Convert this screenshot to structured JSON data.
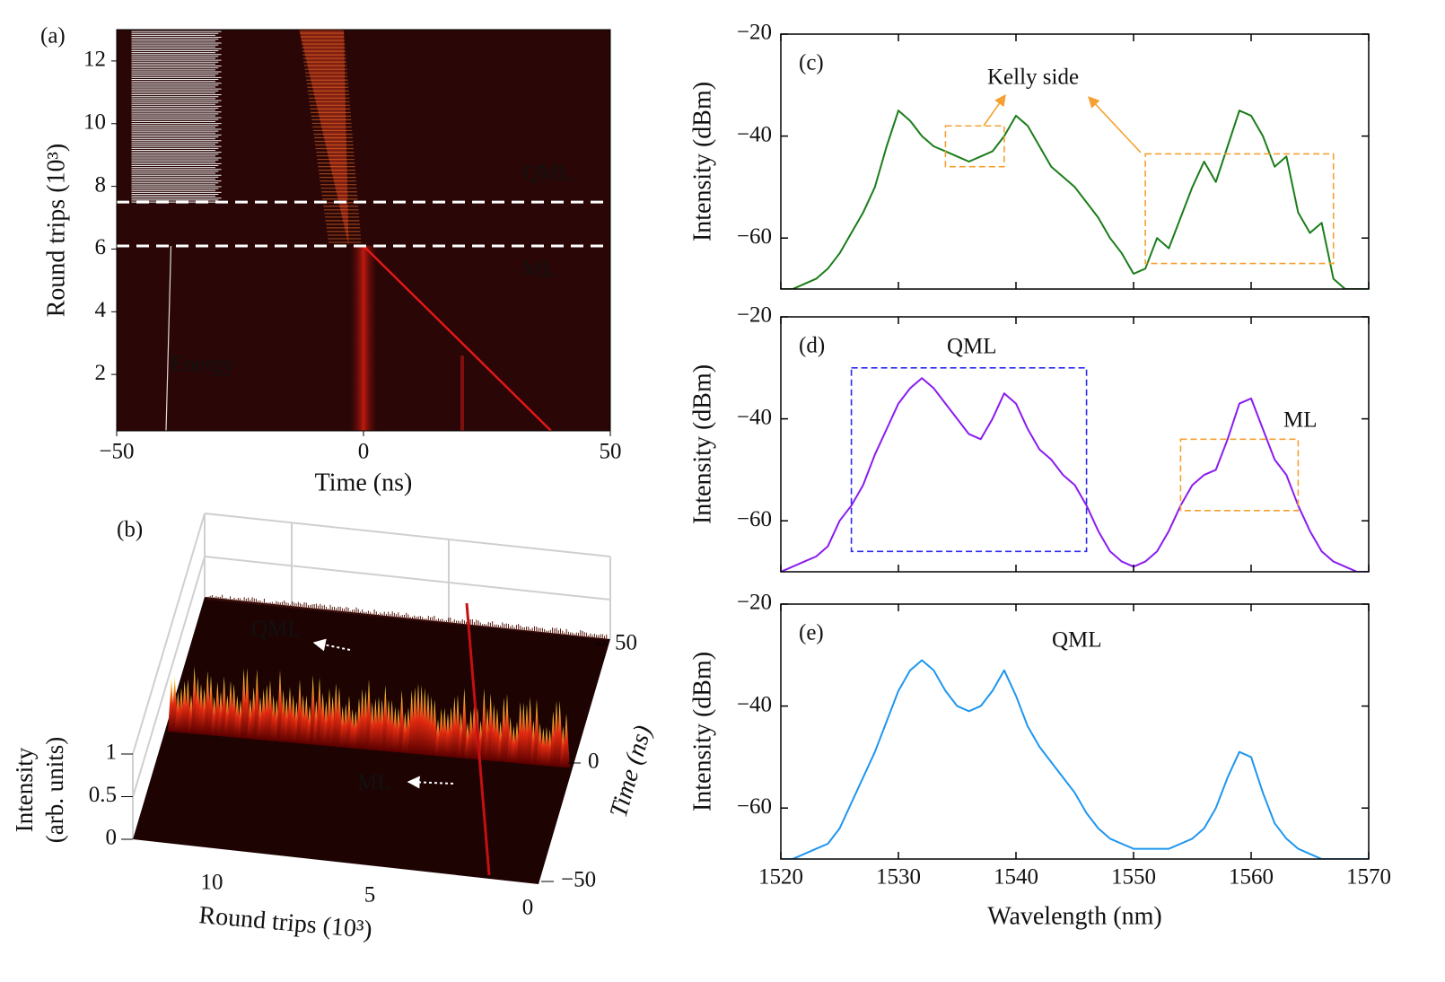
{
  "chart_data": [
    {
      "type": "heatmap",
      "panel": "(a)",
      "xlabel": "Time (ns)",
      "ylabel": "Round trips (10³)",
      "xlim": [
        -50,
        50
      ],
      "xticks": [
        {
          "value": -50,
          "label": "−50"
        },
        0,
        50
      ],
      "ylim": [
        0.2,
        13
      ],
      "yticks": [
        2,
        4,
        6,
        8,
        10,
        12
      ],
      "hlines": [
        7.5,
        6.1
      ],
      "annotations": [
        {
          "text": "QML",
          "color": "#ffffff"
        },
        {
          "text": "ML",
          "color": "#ffffff"
        },
        {
          "text": "Energy",
          "color": "#2f5fd0"
        }
      ]
    },
    {
      "type": "surface3d",
      "panel": "(b)",
      "xlabel": "Round trips (10³)",
      "ylabel": "Time (ns)",
      "zlabel": [
        "Intensity",
        "(arb. units)"
      ],
      "xlim": [
        0,
        13
      ],
      "xticks": [
        10,
        5,
        0
      ],
      "ylim": [
        -50,
        50
      ],
      "yticks": [
        {
          "value": -50,
          "label": "−50"
        },
        0,
        50
      ],
      "zlim": [
        0,
        1
      ],
      "zticks": [
        0,
        0.5,
        1
      ],
      "annotations": [
        {
          "text": "QML",
          "color": "#ffffff"
        },
        {
          "text": "ML",
          "color": "#ffffff"
        }
      ]
    },
    {
      "type": "line",
      "panel": "(c)",
      "ylabel": "Intensity (dBm)",
      "x": [
        1520,
        1521,
        1522,
        1523,
        1524,
        1525,
        1526,
        1527,
        1528,
        1529,
        1530,
        1531,
        1532,
        1533,
        1534,
        1535,
        1536,
        1537,
        1538,
        1539,
        1540,
        1541,
        1542,
        1543,
        1544,
        1545,
        1546,
        1547,
        1548,
        1549,
        1550,
        1551,
        1552,
        1553,
        1554,
        1555,
        1556,
        1557,
        1558,
        1559,
        1560,
        1561,
        1562,
        1563,
        1564,
        1565,
        1566,
        1567,
        1568,
        1569,
        1570
      ],
      "series": [
        {
          "color": "#1a7d1a",
          "values": [
            -70,
            -70,
            -69,
            -68,
            -66,
            -63,
            -59,
            -55,
            -50,
            -42,
            -35,
            -37,
            -40,
            -42,
            -43,
            -44,
            -45,
            -44,
            -43,
            -40,
            -36,
            -38,
            -42,
            -46,
            -48,
            -50,
            -53,
            -56,
            -60,
            -63,
            -67,
            -66,
            -60,
            -62,
            -56,
            -50,
            -45,
            -49,
            -42,
            -35,
            -36,
            -40,
            -46,
            -44,
            -55,
            -59,
            -57,
            -68,
            -70,
            -70,
            -70
          ]
        }
      ],
      "xlim": [
        1520,
        1570
      ],
      "xticks": [
        1520,
        1530,
        1540,
        1550,
        1560,
        1570
      ],
      "ylim": [
        -70,
        -20
      ],
      "yticks": [
        {
          "value": -60,
          "label": "−60"
        },
        {
          "value": -40,
          "label": "−40"
        },
        {
          "value": -20,
          "label": "−20"
        }
      ],
      "boxes": [
        {
          "x": [
            1534,
            1539
          ],
          "y": [
            -46,
            -38
          ],
          "color": "#f5a030"
        },
        {
          "x": [
            1551,
            1567
          ],
          "y": [
            -65,
            -43.5
          ],
          "color": "#f5a030"
        }
      ],
      "annotations": [
        {
          "text": "Kelly side",
          "color": "#f5a030"
        }
      ]
    },
    {
      "type": "line",
      "panel": "(d)",
      "ylabel": "Intensity (dBm)",
      "x": [
        1520,
        1521,
        1522,
        1523,
        1524,
        1525,
        1526,
        1527,
        1528,
        1529,
        1530,
        1531,
        1532,
        1533,
        1534,
        1535,
        1536,
        1537,
        1538,
        1539,
        1540,
        1541,
        1542,
        1543,
        1544,
        1545,
        1546,
        1547,
        1548,
        1549,
        1550,
        1551,
        1552,
        1553,
        1554,
        1555,
        1556,
        1557,
        1558,
        1559,
        1560,
        1561,
        1562,
        1563,
        1564,
        1565,
        1566,
        1567,
        1568,
        1569,
        1570
      ],
      "series": [
        {
          "color": "#8a1cf0",
          "values": [
            -70,
            -69,
            -68,
            -67,
            -65,
            -60,
            -57,
            -53,
            -47,
            -42,
            -37,
            -34,
            -32,
            -34,
            -37,
            -40,
            -43,
            -44,
            -40,
            -35,
            -37,
            -42,
            -46,
            -48,
            -51,
            -53,
            -57,
            -62,
            -66,
            -68,
            -69,
            -68,
            -66,
            -62,
            -57,
            -53,
            -51,
            -50,
            -44,
            -37,
            -36,
            -42,
            -48,
            -51,
            -57,
            -62,
            -66,
            -68,
            -69,
            -70,
            -70
          ]
        }
      ],
      "xlim": [
        1520,
        1570
      ],
      "xticks": [
        1520,
        1530,
        1540,
        1550,
        1560,
        1570
      ],
      "ylim": [
        -70,
        -20
      ],
      "yticks": [
        {
          "value": -60,
          "label": "−60"
        },
        {
          "value": -40,
          "label": "−40"
        },
        {
          "value": -20,
          "label": "−20"
        }
      ],
      "boxes": [
        {
          "x": [
            1526,
            1546
          ],
          "y": [
            -66,
            -30
          ],
          "color": "#2a2af0"
        },
        {
          "x": [
            1554,
            1564
          ],
          "y": [
            -58,
            -44
          ],
          "color": "#f5a030"
        }
      ],
      "annotations": [
        {
          "text": "QML",
          "color": "#2a2af0"
        },
        {
          "text": "ML",
          "color": "#f5a030"
        }
      ]
    },
    {
      "type": "line",
      "panel": "(e)",
      "ylabel": "Intensity (dBm)",
      "xlabel": "Wavelength (nm)",
      "x": [
        1520,
        1521,
        1522,
        1523,
        1524,
        1525,
        1526,
        1527,
        1528,
        1529,
        1530,
        1531,
        1532,
        1533,
        1534,
        1535,
        1536,
        1537,
        1538,
        1539,
        1540,
        1541,
        1542,
        1543,
        1544,
        1545,
        1546,
        1547,
        1548,
        1549,
        1550,
        1551,
        1552,
        1553,
        1554,
        1555,
        1556,
        1557,
        1558,
        1559,
        1560,
        1561,
        1562,
        1563,
        1564,
        1565,
        1566,
        1567,
        1568,
        1569,
        1570
      ],
      "series": [
        {
          "color": "#1e96f0",
          "values": [
            -70,
            -70,
            -69,
            -68,
            -67,
            -64,
            -59,
            -54,
            -49,
            -43,
            -37,
            -33,
            -31,
            -33,
            -37,
            -40,
            -41,
            -40,
            -37,
            -33,
            -38,
            -44,
            -48,
            -51,
            -54,
            -57,
            -61,
            -64,
            -66,
            -67,
            -68,
            -68,
            -68,
            -68,
            -67,
            -66,
            -64,
            -60,
            -54,
            -49,
            -50,
            -57,
            -63,
            -66,
            -68,
            -69,
            -70,
            -70,
            -70,
            -70,
            -70
          ]
        }
      ],
      "xlim": [
        1520,
        1570
      ],
      "xticks": [
        1520,
        1530,
        1540,
        1550,
        1560,
        1570
      ],
      "ylim": [
        -70,
        -20
      ],
      "yticks": [
        {
          "value": -60,
          "label": "−60"
        },
        {
          "value": -40,
          "label": "−40"
        },
        {
          "value": -20,
          "label": "−20"
        }
      ],
      "annotations": [
        {
          "text": "QML",
          "color": "#2a2af0"
        }
      ]
    }
  ]
}
